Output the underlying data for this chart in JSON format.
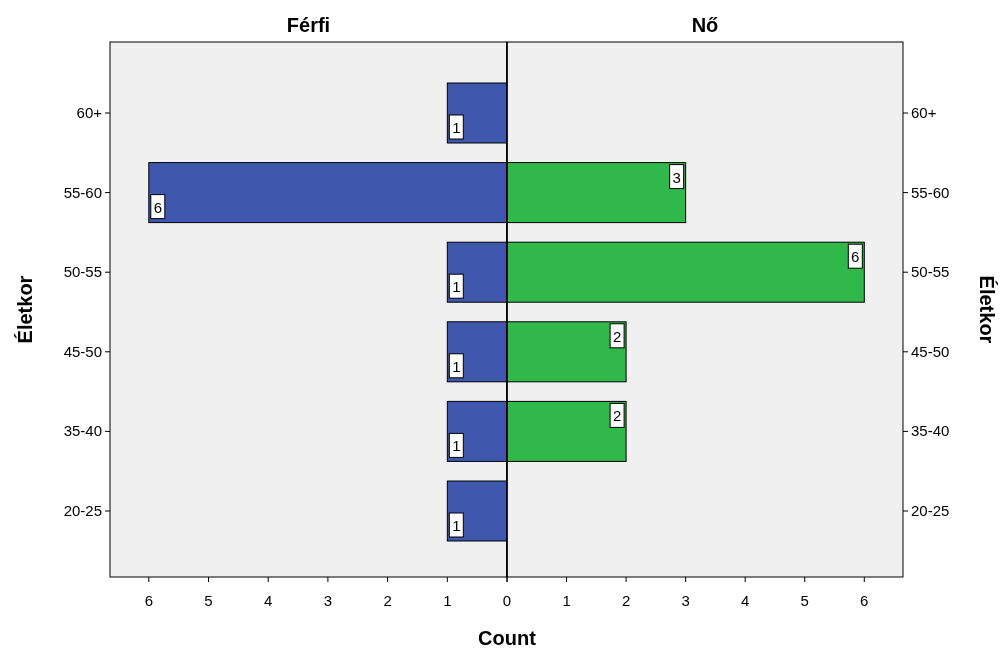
{
  "chart_data": [
    {
      "type": "bar",
      "orientation": "horizontal",
      "title": "Férfi",
      "xlabel": "Count",
      "ylabel": "Életkor",
      "categories": [
        "60+",
        "55-60",
        "50-55",
        "45-50",
        "35-40",
        "20-25"
      ],
      "values": [
        1,
        6,
        1,
        1,
        1,
        1
      ],
      "color": "#3f58ad",
      "xlim": [
        6.65,
        0
      ],
      "xticks": [
        6,
        5,
        4,
        3,
        2,
        1,
        {
          "value": 0,
          "label": null
        }
      ],
      "data_labels": true
    },
    {
      "type": "bar",
      "orientation": "horizontal",
      "title": "Nő",
      "ylabel": "Életkor",
      "categories": [
        "60+",
        "55-60",
        "50-55",
        "45-50",
        "35-40",
        "20-25"
      ],
      "values": [
        null,
        3,
        6,
        2,
        2,
        null
      ],
      "color": "#30b84a",
      "xlim": [
        0,
        6.65
      ],
      "xticks": [
        0,
        1,
        2,
        3,
        4,
        5,
        6
      ],
      "data_labels": true
    }
  ]
}
